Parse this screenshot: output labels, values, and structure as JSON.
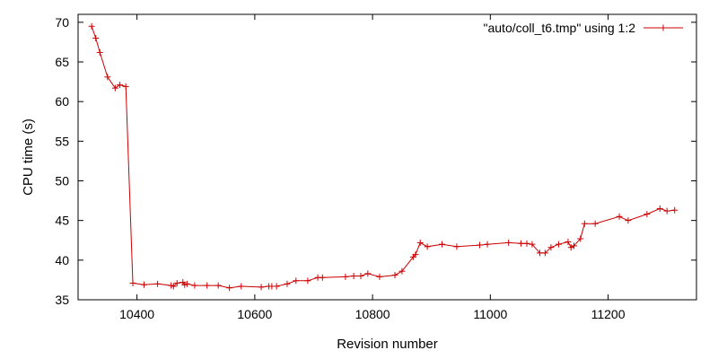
{
  "chart_data": {
    "type": "line",
    "title": "",
    "xlabel": "Revision number",
    "ylabel": "CPU time (s)",
    "xlim": [
      10300,
      11350
    ],
    "ylim": [
      35,
      71
    ],
    "x_ticks": [
      10400,
      10600,
      10800,
      11000,
      11200
    ],
    "y_ticks": [
      35,
      40,
      45,
      50,
      55,
      60,
      65,
      70
    ],
    "grid": false,
    "legend_position": "top-right",
    "line_color": "#cc0000",
    "series": [
      {
        "name": "\"auto/coll_t6.tmp\" using 1:2",
        "marker": "plus",
        "x": [
          10323,
          10330,
          10337,
          10350,
          10363,
          10371,
          10381,
          10393,
          10412,
          10435,
          10458,
          10462,
          10468,
          10478,
          10481,
          10485,
          10498,
          10519,
          10538,
          10557,
          10577,
          10611,
          10624,
          10629,
          10637,
          10655,
          10670,
          10690,
          10707,
          10715,
          10754,
          10768,
          10780,
          10792,
          10812,
          10838,
          10850,
          10869,
          10873,
          10881,
          10893,
          10918,
          10943,
          10982,
          10995,
          11031,
          11052,
          11062,
          11071,
          11084,
          11093,
          11103,
          11116,
          11132,
          11137,
          11142,
          11153,
          11160,
          11178,
          11219,
          11234,
          11266,
          11288,
          11300,
          11313
        ],
        "y": [
          69.5,
          68.0,
          66.2,
          63.1,
          61.7,
          62.1,
          61.9,
          37.1,
          36.9,
          37.0,
          36.8,
          36.7,
          37.1,
          37.2,
          36.9,
          37.0,
          36.8,
          36.8,
          36.8,
          36.5,
          36.7,
          36.6,
          36.7,
          36.7,
          36.7,
          37.0,
          37.4,
          37.4,
          37.8,
          37.8,
          37.9,
          38.0,
          38.0,
          38.3,
          37.9,
          38.1,
          38.6,
          40.4,
          40.7,
          42.2,
          41.7,
          42.0,
          41.7,
          41.9,
          42.0,
          42.2,
          42.1,
          42.1,
          42.0,
          40.9,
          40.9,
          41.6,
          42.0,
          42.3,
          41.6,
          41.8,
          42.7,
          44.6,
          44.6,
          45.5,
          45.0,
          45.8,
          46.5,
          46.2,
          46.3
        ]
      }
    ]
  }
}
